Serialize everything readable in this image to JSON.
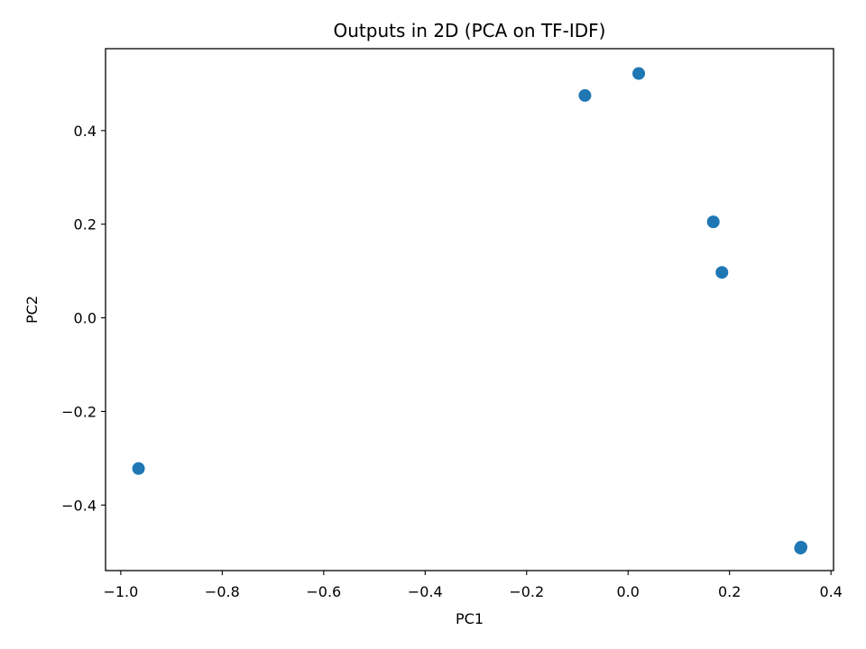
{
  "chart_data": {
    "type": "scatter",
    "title": "Outputs in 2D (PCA on TF-IDF)",
    "xlabel": "PC1",
    "ylabel": "PC2",
    "xlim": [
      -1.03,
      0.405
    ],
    "ylim": [
      -0.54,
      0.575
    ],
    "x_ticks": [
      -1.0,
      -0.8,
      -0.6,
      -0.4,
      -0.2,
      0.0,
      0.2,
      0.4
    ],
    "x_tick_labels": [
      "−1.0",
      "−0.8",
      "−0.6",
      "−0.4",
      "−0.2",
      "0.0",
      "0.2",
      "0.4"
    ],
    "y_ticks": [
      0.4,
      0.2,
      0.0,
      -0.2,
      -0.4
    ],
    "y_tick_labels": [
      "0.4",
      "0.2",
      "0.0",
      "−0.2",
      "−0.4"
    ],
    "grid": false,
    "marker_color": "#1f77b4",
    "series": [
      {
        "points": [
          {
            "x": -0.965,
            "y": -0.322
          },
          {
            "x": -0.085,
            "y": 0.475
          },
          {
            "x": 0.021,
            "y": 0.522
          },
          {
            "x": 0.168,
            "y": 0.205
          },
          {
            "x": 0.185,
            "y": 0.097
          },
          {
            "x": 0.34,
            "y": -0.492
          },
          {
            "x": 0.341,
            "y": -0.49
          }
        ]
      }
    ]
  }
}
